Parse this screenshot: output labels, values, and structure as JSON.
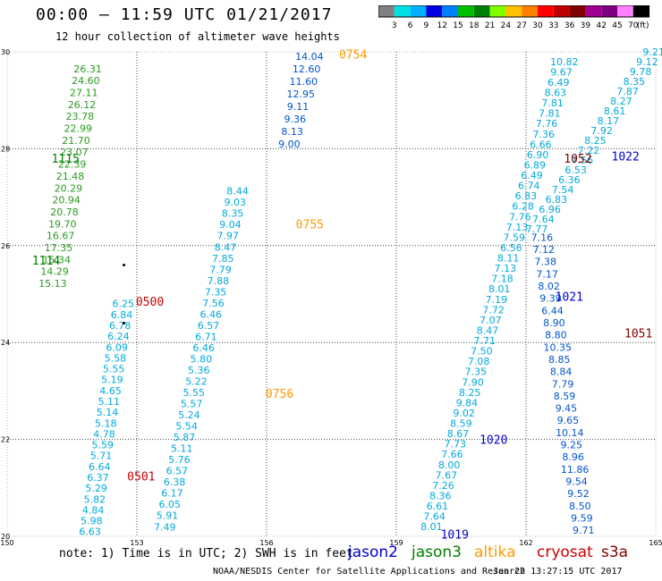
{
  "header": {
    "title": "00:00 – 11:59 UTC 01/21/2017",
    "subtitle": "12 hour collection of altimeter wave heights"
  },
  "colorbar": {
    "colors": [
      "#808080",
      "#00e0e0",
      "#00b0ff",
      "#0000e0",
      "#0080ff",
      "#00c000",
      "#008000",
      "#80ff00",
      "#ffc000",
      "#ff8000",
      "#ff0000",
      "#c00000",
      "#800000",
      "#a00090",
      "#800080",
      "#ff80ff",
      "#000000"
    ],
    "labels": [
      "3",
      "6",
      "9",
      "12",
      "15",
      "18",
      "21",
      "24",
      "27",
      "30",
      "33",
      "36",
      "39",
      "42",
      "45",
      "70",
      "(ft)"
    ]
  },
  "footer": {
    "note": "note: 1) Time is in UTC; 2) SWH is in feet",
    "credit": "NOAA/NESDIS Center for Satellite Applications and Research",
    "timestamp": "Jan 22 13:27:15 UTC 2017",
    "satellites": [
      {
        "name": "jason2",
        "color": "#0000cc"
      },
      {
        "name": "jason3",
        "color": "#008000"
      },
      {
        "name": "altika",
        "color": "#ff9900"
      },
      {
        "name": "cryosat",
        "color": "#cc0000"
      },
      {
        "name": "s3a",
        "color": "#800000"
      }
    ]
  },
  "chart_data": {
    "type": "scatter",
    "title": "00:00 – 11:59 UTC 01/21/2017",
    "subtitle": "12 hour collection of altimeter wave heights",
    "xlim": [
      150,
      165
    ],
    "ylim": [
      20,
      30
    ],
    "xticks": [
      150,
      153,
      156,
      159,
      162,
      165
    ],
    "yticks": [
      20,
      22,
      24,
      26,
      28,
      30
    ],
    "grid": true,
    "legend": "bottom",
    "tracks": [
      {
        "id": "t1114",
        "x0": 150.1,
        "y0": 20.0,
        "x1": 151.9,
        "y1": 29.85,
        "start": 0.53,
        "end": 0.98,
        "color": "#2a9a20",
        "values": [
          "15.13",
          "14.29",
          "15.34",
          "17.35",
          "16.67",
          "19.70",
          "20.78",
          "20.94",
          "20.29",
          "21.48",
          "22.39",
          "23.07",
          "21.70",
          "22.99",
          "23.78",
          "26.12",
          "27.11",
          "24.60",
          "26.31"
        ],
        "labels": [
          {
            "text": "1115",
            "x": 151.35,
            "y": 27.8,
            "color": "#008000"
          },
          {
            "text": "1114",
            "x": 150.9,
            "y": 25.7,
            "color": "#008000"
          }
        ]
      },
      {
        "id": "t0500",
        "x0": 151.9,
        "y0": 20.0,
        "x1": 152.7,
        "y1": 24.9,
        "start": 0.02,
        "end": 0.98,
        "color": "#00aadd",
        "values": [
          "6.63",
          "5.98",
          "4.84",
          "5.82",
          "5.29",
          "6.37",
          "6.64",
          "5.71",
          "5.59",
          "4.78",
          "5.18",
          "5.14",
          "5.11",
          "4.65",
          "5.19",
          "5.55",
          "5.58",
          "6.09",
          "6.24",
          "6.78",
          "6.84",
          "6.25"
        ],
        "labels": [
          {
            "text": "0500",
            "x": 153.3,
            "y": 24.85,
            "color": "#cc0000"
          },
          {
            "text": "0501",
            "x": 153.1,
            "y": 21.25,
            "color": "#cc0000"
          }
        ]
      },
      {
        "id": "t0754",
        "x0": 153.6,
        "y0": 20.0,
        "x1": 156.0,
        "y1": 29.9,
        "start": 0.02,
        "end": 0.72,
        "color": "#00aadd",
        "values": [
          "7.49",
          "5.91",
          "6.05",
          "6.17",
          "6.38",
          "6.57",
          "5.76",
          "5.11",
          "5.87",
          "5.54",
          "5.24",
          "5.57",
          "5.55",
          "5.22",
          "5.36",
          "5.80",
          "6.46",
          "6.71",
          "6.57",
          "6.46",
          "7.56",
          "7.35",
          "7.88",
          "7.79",
          "7.85",
          "8.47",
          "7.97",
          "9.04",
          "8.35",
          "9.03",
          "8.44"
        ],
        "labels": [
          {
            "text": "0756",
            "x": 156.3,
            "y": 22.95,
            "color": "#ff9900"
          },
          {
            "text": "0755",
            "x": 157.0,
            "y": 26.45,
            "color": "#ff9900"
          },
          {
            "text": "0754",
            "x": 158.0,
            "y": 29.95,
            "color": "#ff9900"
          }
        ]
      },
      {
        "id": "t0754b",
        "x0": 156.5,
        "y0": 28.0,
        "x1": 157.0,
        "y1": 29.95,
        "start": 0.05,
        "end": 0.98,
        "color": "#0055cc",
        "values": [
          "9.00",
          "8.13",
          "9.36",
          "9.11",
          "12.95",
          "11.60",
          "12.60",
          "14.04"
        ],
        "labels": []
      },
      {
        "id": "t1019",
        "x0": 159.75,
        "y0": 20.0,
        "x1": 162.95,
        "y1": 30.0,
        "start": 0.02,
        "end": 0.98,
        "color": "#00aadd",
        "values": [
          "8.01",
          "7.64",
          "6.61",
          "8.36",
          "7.26",
          "7.67",
          "8.00",
          "7.66",
          "7.73",
          "8.67",
          "8.59",
          "9.02",
          "9.84",
          "8.25",
          "7.90",
          "7.35",
          "7.08",
          "7.50",
          "7.71",
          "8.47",
          "7.07",
          "7.72",
          "7.19",
          "8.01",
          "7.18",
          "7.13",
          "8.11",
          "6.56",
          "7.59",
          "7.13",
          "7.76",
          "6.28",
          "6.83",
          "6.74",
          "6.49",
          "6.89",
          "6.90",
          "6.66",
          "7.36",
          "7.76",
          "7.81",
          "7.81",
          "8.63",
          "6.49",
          "9.67",
          "10.82"
        ],
        "labels": [
          {
            "text": "1019",
            "x": 160.35,
            "y": 20.05,
            "color": "#0000cc"
          },
          {
            "text": "1020",
            "x": 161.25,
            "y": 22.0,
            "color": "#0000cc"
          },
          {
            "text": "1021",
            "x": 163.0,
            "y": 24.95,
            "color": "#0000cc"
          },
          {
            "text": "1022",
            "x": 164.3,
            "y": 27.85,
            "color": "#0000cc"
          },
          {
            "text": "1052",
            "x": 163.2,
            "y": 27.8,
            "color": "#800000"
          },
          {
            "text": "1051",
            "x": 164.6,
            "y": 24.2,
            "color": "#800000"
          }
        ]
      },
      {
        "id": "t1022",
        "x0": 162.25,
        "y0": 26.35,
        "x1": 164.95,
        "y1": 30.0,
        "start": 0.0,
        "end": 1.0,
        "color": "#00aadd",
        "values": [
          "7.77",
          "7.64",
          "6.96",
          "6.83",
          "7.54",
          "6.36",
          "6.53",
          "7.56",
          "7.22",
          "8.25",
          "7.92",
          "8.17",
          "8.61",
          "8.27",
          "7.87",
          "8.35",
          "9.78",
          "9.12",
          "9.21"
        ],
        "labels": []
      },
      {
        "id": "t1051",
        "x0": 163.35,
        "y0": 20.0,
        "x1": 162.35,
        "y1": 26.3,
        "start": 0.02,
        "end": 0.98,
        "color": "#0055cc",
        "values": [
          "9.71",
          "9.59",
          "8.50",
          "9.52",
          "9.54",
          "11.86",
          "8.96",
          "9.25",
          "10.14",
          "9.65",
          "9.45",
          "8.59",
          "7.79",
          "8.84",
          "8.85",
          "10.35",
          "8.80",
          "8.90",
          "6.44",
          "9.39",
          "8.02",
          "7.17",
          "7.38",
          "7.12",
          "7.16"
        ],
        "labels": []
      }
    ],
    "markers": [
      {
        "x": 152.7,
        "y": 25.6
      },
      {
        "x": 152.7,
        "y": 24.4
      }
    ]
  }
}
